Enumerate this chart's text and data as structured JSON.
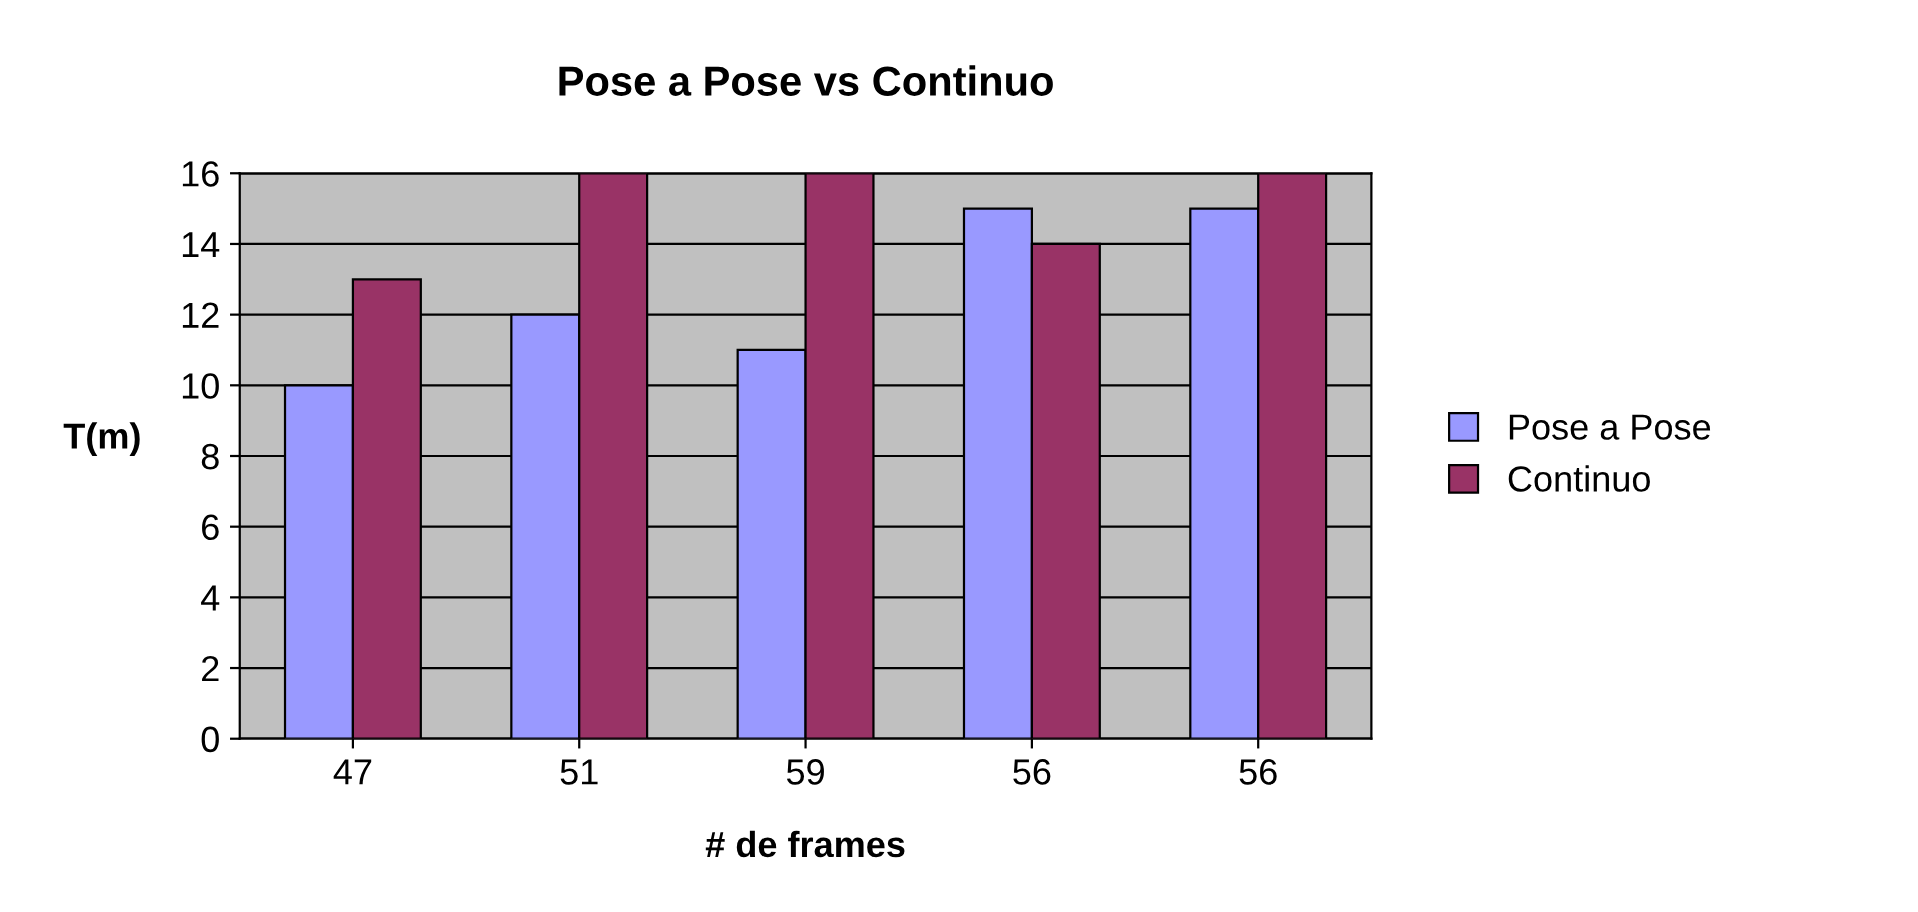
{
  "chart_data": {
    "type": "bar",
    "title": "Pose a Pose vs Continuo",
    "xlabel": "# de frames",
    "ylabel": "T(m)",
    "categories": [
      "47",
      "51",
      "59",
      "56",
      "56"
    ],
    "series": [
      {
        "name": "Pose a Pose",
        "color": "#9999ff",
        "values": [
          10,
          12,
          11,
          15,
          15
        ]
      },
      {
        "name": "Continuo",
        "color": "#993366",
        "values": [
          13,
          16,
          16,
          14,
          16
        ]
      }
    ],
    "ylim": [
      0,
      16
    ],
    "yticks": [
      0,
      2,
      4,
      6,
      8,
      10,
      12,
      14,
      16
    ],
    "grid": "y",
    "legend": "right"
  }
}
